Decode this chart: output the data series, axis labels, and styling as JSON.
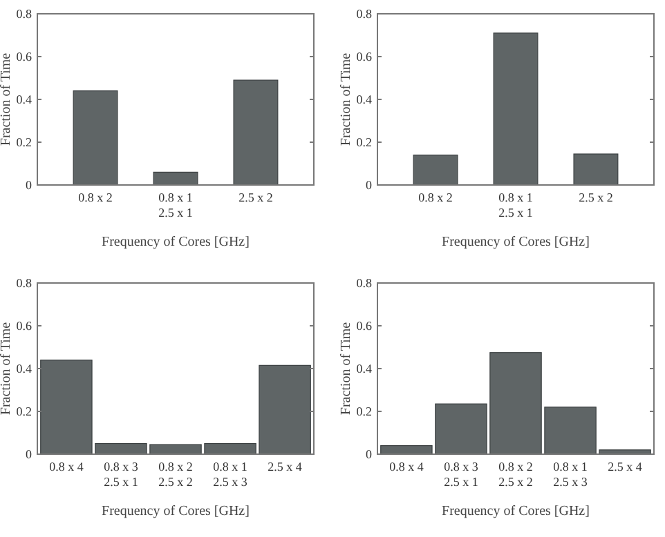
{
  "chart_data": [
    {
      "type": "bar",
      "categories": [
        "0.8 x 2",
        "0.8 x 1\n2.5 x 1",
        "2.5 x 2"
      ],
      "values": [
        0.44,
        0.06,
        0.49
      ],
      "color": "#5f6566",
      "xlabel": "Frequency of Cores [GHz]",
      "ylabel": "Fraction of Time",
      "ylim": [
        0,
        0.8
      ],
      "yticks": [
        0,
        0.2,
        0.4,
        0.6,
        0.8
      ],
      "grid": false
    },
    {
      "type": "bar",
      "categories": [
        "0.8 x 2",
        "0.8 x 1\n2.5 x 1",
        "2.5 x 2"
      ],
      "values": [
        0.14,
        0.71,
        0.145
      ],
      "color": "#5f6566",
      "xlabel": "Frequency of Cores [GHz]",
      "ylabel": "Fraction of Time",
      "ylim": [
        0,
        0.8
      ],
      "yticks": [
        0,
        0.2,
        0.4,
        0.6,
        0.8
      ],
      "grid": false
    },
    {
      "type": "bar",
      "categories": [
        "0.8 x 4",
        "0.8 x 3\n2.5 x 1",
        "0.8 x 2\n2.5 x 2",
        "0.8 x 1\n2.5 x 3",
        "2.5 x 4"
      ],
      "values": [
        0.44,
        0.05,
        0.045,
        0.05,
        0.415
      ],
      "color": "#5f6566",
      "xlabel": "Frequency of Cores [GHz]",
      "ylabel": "Fraction of Time",
      "ylim": [
        0,
        0.8
      ],
      "yticks": [
        0,
        0.2,
        0.4,
        0.6,
        0.8
      ],
      "grid": false
    },
    {
      "type": "bar",
      "categories": [
        "0.8 x 4",
        "0.8 x 3\n2.5 x 1",
        "0.8 x 2\n2.5 x 2",
        "0.8 x 1\n2.5 x 3",
        "2.5 x 4"
      ],
      "values": [
        0.04,
        0.235,
        0.475,
        0.22,
        0.02
      ],
      "color": "#5f6566",
      "xlabel": "Frequency of Cores [GHz]",
      "ylabel": "Fraction of Time",
      "ylim": [
        0,
        0.8
      ],
      "yticks": [
        0,
        0.2,
        0.4,
        0.6,
        0.8
      ],
      "grid": false
    }
  ]
}
